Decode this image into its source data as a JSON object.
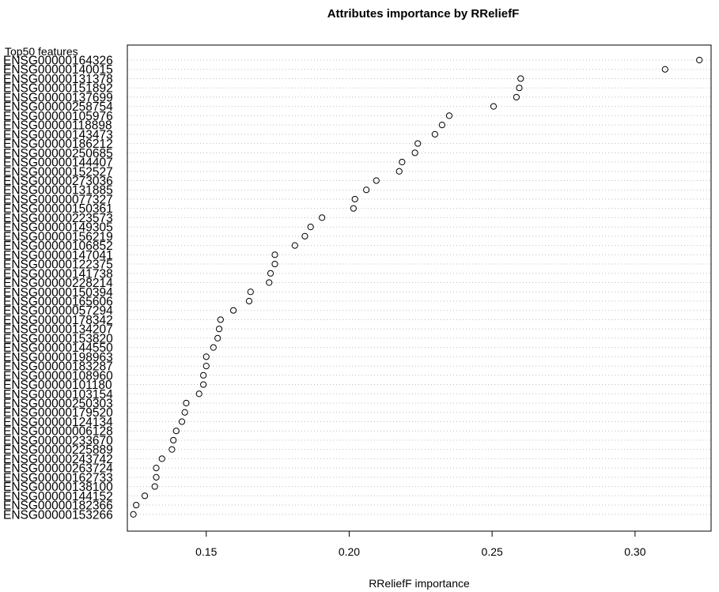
{
  "chart_data": {
    "type": "scatter",
    "title": "Attributes importance by RReliefF",
    "xlabel": "RReliefF importance",
    "ylabel": "Top50 features",
    "xlim": [
      0.1224,
      0.3266
    ],
    "xticks": [
      0.15,
      0.2,
      0.25,
      0.3
    ],
    "xtick_labels": [
      "0.15",
      "0.20",
      "0.25",
      "0.30"
    ],
    "grid": "dotted horizontal",
    "marker": "open circle",
    "colors": {
      "points": "#000000",
      "grid": "#bebebe",
      "frame": "#000000"
    },
    "features": [
      {
        "name": "ENSG00000164326",
        "value": 0.3225
      },
      {
        "name": "ENSG00000140015",
        "value": 0.3105
      },
      {
        "name": "ENSG00000131378",
        "value": 0.26
      },
      {
        "name": "ENSG00000151892",
        "value": 0.2595
      },
      {
        "name": "ENSG00000137699",
        "value": 0.2585
      },
      {
        "name": "ENSG00000258754",
        "value": 0.2505
      },
      {
        "name": "ENSG00000105976",
        "value": 0.235
      },
      {
        "name": "ENSG00000118898",
        "value": 0.2325
      },
      {
        "name": "ENSG00000143473",
        "value": 0.23
      },
      {
        "name": "ENSG00000186212",
        "value": 0.224
      },
      {
        "name": "ENSG00000250685",
        "value": 0.223
      },
      {
        "name": "ENSG00000144407",
        "value": 0.2185
      },
      {
        "name": "ENSG00000152527",
        "value": 0.2175
      },
      {
        "name": "ENSG00000273036",
        "value": 0.2095
      },
      {
        "name": "ENSG00000131885",
        "value": 0.206
      },
      {
        "name": "ENSG00000077327",
        "value": 0.202
      },
      {
        "name": "ENSG00000150361",
        "value": 0.2015
      },
      {
        "name": "ENSG00000223573",
        "value": 0.1905
      },
      {
        "name": "ENSG00000149305",
        "value": 0.1865
      },
      {
        "name": "ENSG00000156219",
        "value": 0.1845
      },
      {
        "name": "ENSG00000106852",
        "value": 0.181
      },
      {
        "name": "ENSG00000147041",
        "value": 0.174
      },
      {
        "name": "ENSG00000122375",
        "value": 0.174
      },
      {
        "name": "ENSG00000141738",
        "value": 0.1725
      },
      {
        "name": "ENSG00000228214",
        "value": 0.172
      },
      {
        "name": "ENSG00000150394",
        "value": 0.1655
      },
      {
        "name": "ENSG00000165606",
        "value": 0.165
      },
      {
        "name": "ENSG00000057294",
        "value": 0.1595
      },
      {
        "name": "ENSG00000178342",
        "value": 0.155
      },
      {
        "name": "ENSG00000134207",
        "value": 0.1545
      },
      {
        "name": "ENSG00000153820",
        "value": 0.154
      },
      {
        "name": "ENSG00000144550",
        "value": 0.1525
      },
      {
        "name": "ENSG00000198963",
        "value": 0.15
      },
      {
        "name": "ENSG00000183287",
        "value": 0.15
      },
      {
        "name": "ENSG00000108960",
        "value": 0.149
      },
      {
        "name": "ENSG00000101180",
        "value": 0.149
      },
      {
        "name": "ENSG00000103154",
        "value": 0.1475
      },
      {
        "name": "ENSG00000250303",
        "value": 0.143
      },
      {
        "name": "ENSG00000179520",
        "value": 0.1425
      },
      {
        "name": "ENSG00000124134",
        "value": 0.1415
      },
      {
        "name": "ENSG00000006128",
        "value": 0.1395
      },
      {
        "name": "ENSG00000233670",
        "value": 0.1385
      },
      {
        "name": "ENSG00000225889",
        "value": 0.138
      },
      {
        "name": "ENSG00000243742",
        "value": 0.1345
      },
      {
        "name": "ENSG00000263724",
        "value": 0.1325
      },
      {
        "name": "ENSG00000162733",
        "value": 0.1325
      },
      {
        "name": "ENSG00000138100",
        "value": 0.132
      },
      {
        "name": "ENSG00000144152",
        "value": 0.1285
      },
      {
        "name": "ENSG00000182366",
        "value": 0.1255
      },
      {
        "name": "ENSG00000153266",
        "value": 0.1245
      }
    ]
  }
}
